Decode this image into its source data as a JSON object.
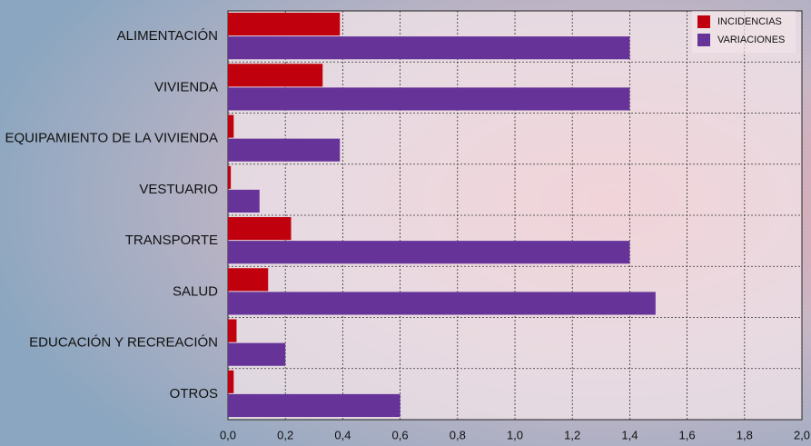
{
  "chart_data": {
    "type": "hbar",
    "categories": [
      "ALIMENTACIÓN",
      "VIVIENDA",
      "EQUIPAMIENTO DE LA VIVIENDA",
      "VESTUARIO",
      "TRANSPORTE",
      "SALUD",
      "EDUCACIÓN Y RECREACIÓN",
      "OTROS"
    ],
    "series": [
      {
        "name": "INCIDENCIAS",
        "color": "#c0000c",
        "values": [
          0.39,
          0.33,
          0.02,
          0.01,
          0.22,
          0.14,
          0.03,
          0.02
        ]
      },
      {
        "name": "VARIACIONES",
        "color": "#663399",
        "values": [
          1.4,
          1.4,
          0.39,
          0.11,
          1.4,
          1.49,
          0.2,
          0.6
        ]
      }
    ],
    "xlim": [
      0,
      2
    ],
    "xticks": [
      {
        "value": 0,
        "label": "0,0"
      },
      {
        "value": 0.2,
        "label": "0,2"
      },
      {
        "value": 0.4,
        "label": "0,4"
      },
      {
        "value": 0.6,
        "label": "0,6"
      },
      {
        "value": 0.8,
        "label": "0,8"
      },
      {
        "value": 1.0,
        "label": "1,0"
      },
      {
        "value": 1.2,
        "label": "1,2"
      },
      {
        "value": 1.4,
        "label": "1,4"
      },
      {
        "value": 1.6,
        "label": "1,6"
      },
      {
        "value": 1.8,
        "label": "1,8"
      },
      {
        "value": 2.0,
        "label": "2,0"
      }
    ],
    "grid": true,
    "legend": "top-right"
  }
}
